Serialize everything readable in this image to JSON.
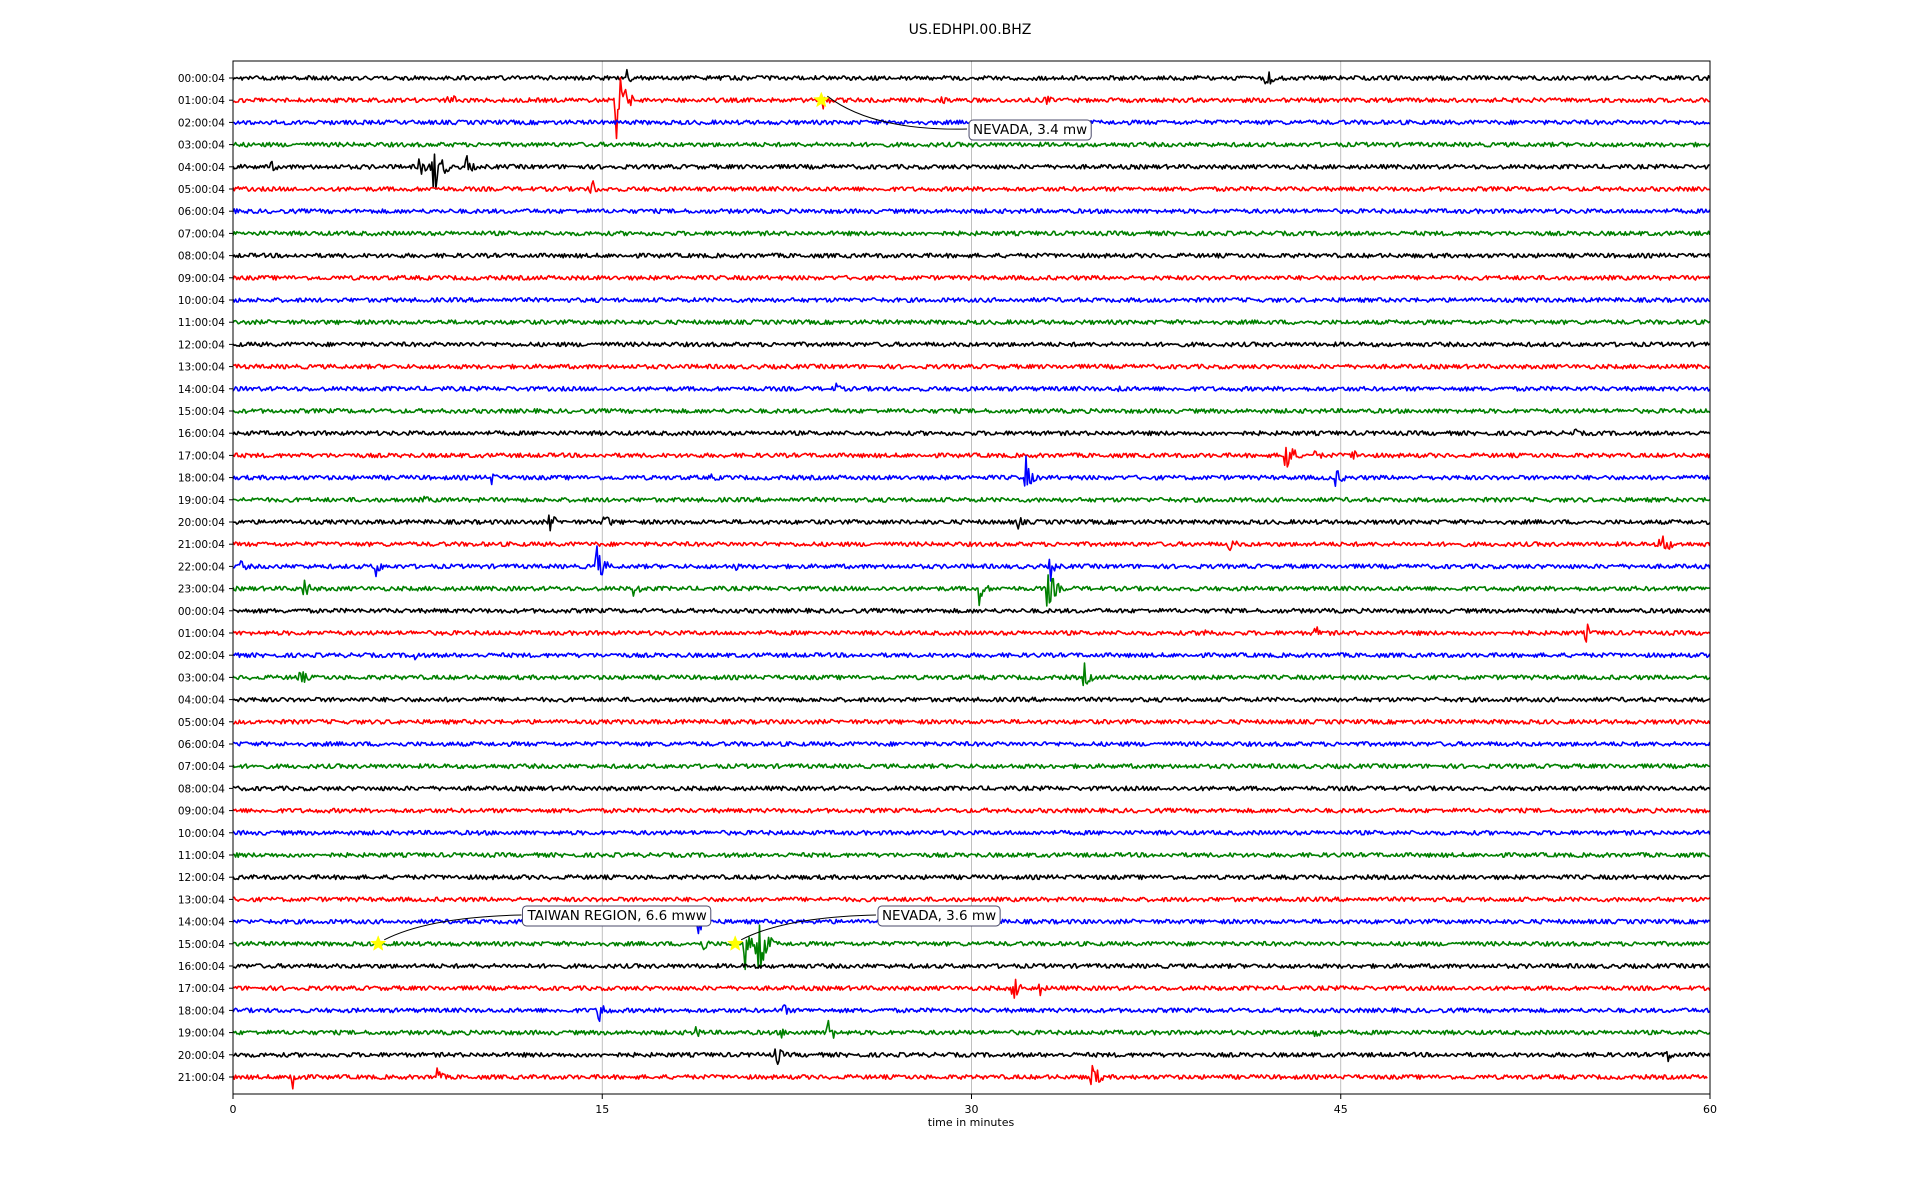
{
  "chart_data": {
    "type": "line",
    "title": "US.EDHPI.00.BHZ",
    "xlabel": "time in minutes",
    "ylabel": "",
    "xlim": [
      0,
      60
    ],
    "xticks": [
      0,
      15,
      30,
      45,
      60
    ],
    "grid": "vertical",
    "row_colors": [
      "#000000",
      "#ff0000",
      "#0000ff",
      "#008000"
    ],
    "rows": [
      "00:00:04",
      "01:00:04",
      "02:00:04",
      "03:00:04",
      "04:00:04",
      "05:00:04",
      "06:00:04",
      "07:00:04",
      "08:00:04",
      "09:00:04",
      "10:00:04",
      "11:00:04",
      "12:00:04",
      "13:00:04",
      "14:00:04",
      "15:00:04",
      "16:00:04",
      "17:00:04",
      "18:00:04",
      "19:00:04",
      "20:00:04",
      "21:00:04",
      "22:00:04",
      "23:00:04",
      "00:00:04",
      "01:00:04",
      "02:00:04",
      "03:00:04",
      "04:00:04",
      "05:00:04",
      "06:00:04",
      "07:00:04",
      "08:00:04",
      "09:00:04",
      "10:00:04",
      "11:00:04",
      "12:00:04",
      "13:00:04",
      "14:00:04",
      "15:00:04",
      "16:00:04",
      "17:00:04",
      "18:00:04",
      "19:00:04",
      "20:00:04",
      "21:00:04"
    ],
    "last_row_end_minute": 59.9,
    "signals": [
      {
        "row": 0,
        "t": 16.0,
        "amp": 5
      },
      {
        "row": 0,
        "t": 42.0,
        "amp": 8
      },
      {
        "row": 1,
        "t": 8.7,
        "amp": 9
      },
      {
        "row": 1,
        "t": 15.6,
        "amp": 30
      },
      {
        "row": 1,
        "t": 24.0,
        "amp": 6
      },
      {
        "row": 1,
        "t": 28.8,
        "amp": 5
      },
      {
        "row": 1,
        "t": 33.0,
        "amp": 5
      },
      {
        "row": 4,
        "t": 1.5,
        "amp": 6
      },
      {
        "row": 4,
        "t": 7.6,
        "amp": 10
      },
      {
        "row": 4,
        "t": 8.1,
        "amp": 30
      },
      {
        "row": 4,
        "t": 9.5,
        "amp": 7
      },
      {
        "row": 5,
        "t": 14.6,
        "amp": 5
      },
      {
        "row": 14,
        "t": 24.5,
        "amp": 4
      },
      {
        "row": 14,
        "t": 36.0,
        "amp": 4
      },
      {
        "row": 16,
        "t": 54.5,
        "amp": 4
      },
      {
        "row": 17,
        "t": 42.8,
        "amp": 14
      },
      {
        "row": 17,
        "t": 44.0,
        "amp": 5
      },
      {
        "row": 17,
        "t": 45.5,
        "amp": 6
      },
      {
        "row": 18,
        "t": 10.5,
        "amp": 5
      },
      {
        "row": 18,
        "t": 19.5,
        "amp": 4
      },
      {
        "row": 18,
        "t": 32.2,
        "amp": 12
      },
      {
        "row": 18,
        "t": 44.8,
        "amp": 8
      },
      {
        "row": 19,
        "t": 7.8,
        "amp": 4
      },
      {
        "row": 20,
        "t": 12.9,
        "amp": 7
      },
      {
        "row": 20,
        "t": 15.1,
        "amp": 7
      },
      {
        "row": 20,
        "t": 31.9,
        "amp": 5
      },
      {
        "row": 21,
        "t": 40.5,
        "amp": 6
      },
      {
        "row": 21,
        "t": 58.0,
        "amp": 14
      },
      {
        "row": 22,
        "t": 0.3,
        "amp": 6
      },
      {
        "row": 22,
        "t": 5.8,
        "amp": 7
      },
      {
        "row": 22,
        "t": 14.8,
        "amp": 14
      },
      {
        "row": 22,
        "t": 20.4,
        "amp": 4
      },
      {
        "row": 22,
        "t": 33.2,
        "amp": 8
      },
      {
        "row": 23,
        "t": 2.9,
        "amp": 8
      },
      {
        "row": 23,
        "t": 16.3,
        "amp": 8
      },
      {
        "row": 23,
        "t": 30.3,
        "amp": 10
      },
      {
        "row": 23,
        "t": 33.1,
        "amp": 18
      },
      {
        "row": 25,
        "t": 39.5,
        "amp": 6
      },
      {
        "row": 25,
        "t": 44.0,
        "amp": 6
      },
      {
        "row": 25,
        "t": 55.0,
        "amp": 6
      },
      {
        "row": 26,
        "t": 7.4,
        "amp": 4
      },
      {
        "row": 27,
        "t": 2.7,
        "amp": 8
      },
      {
        "row": 27,
        "t": 34.6,
        "amp": 8
      },
      {
        "row": 38,
        "t": 18.9,
        "amp": 10
      },
      {
        "row": 39,
        "t": 19.0,
        "amp": 9
      },
      {
        "row": 39,
        "t": 21.3,
        "amp": 32
      },
      {
        "row": 39,
        "t": 20.8,
        "amp": 14
      },
      {
        "row": 41,
        "t": 31.7,
        "amp": 12
      },
      {
        "row": 41,
        "t": 32.8,
        "amp": 5
      },
      {
        "row": 42,
        "t": 14.9,
        "amp": 9
      },
      {
        "row": 42,
        "t": 22.4,
        "amp": 5
      },
      {
        "row": 43,
        "t": 18.8,
        "amp": 5
      },
      {
        "row": 43,
        "t": 22.3,
        "amp": 4
      },
      {
        "row": 43,
        "t": 24.2,
        "amp": 9
      },
      {
        "row": 43,
        "t": 44.0,
        "amp": 6
      },
      {
        "row": 44,
        "t": 22.1,
        "amp": 7
      },
      {
        "row": 44,
        "t": 58.3,
        "amp": 5
      },
      {
        "row": 45,
        "t": 2.4,
        "amp": 9
      },
      {
        "row": 45,
        "t": 8.3,
        "amp": 6
      },
      {
        "row": 45,
        "t": 34.9,
        "amp": 12
      }
    ],
    "events": [
      {
        "label": "NEVADA, 3.4 mw",
        "row": 1,
        "t": 23.9,
        "label_t": 29.9,
        "label_row": 2.3
      },
      {
        "label": "TAIWAN REGION, 6.6 mww",
        "row": 39,
        "t": 5.9,
        "label_t": 11.8,
        "label_row": 37.7
      },
      {
        "label": "NEVADA, 3.6 mw",
        "row": 39,
        "t": 20.4,
        "label_t": 26.2,
        "label_row": 37.7
      }
    ],
    "marker_color": "#ffff00"
  }
}
